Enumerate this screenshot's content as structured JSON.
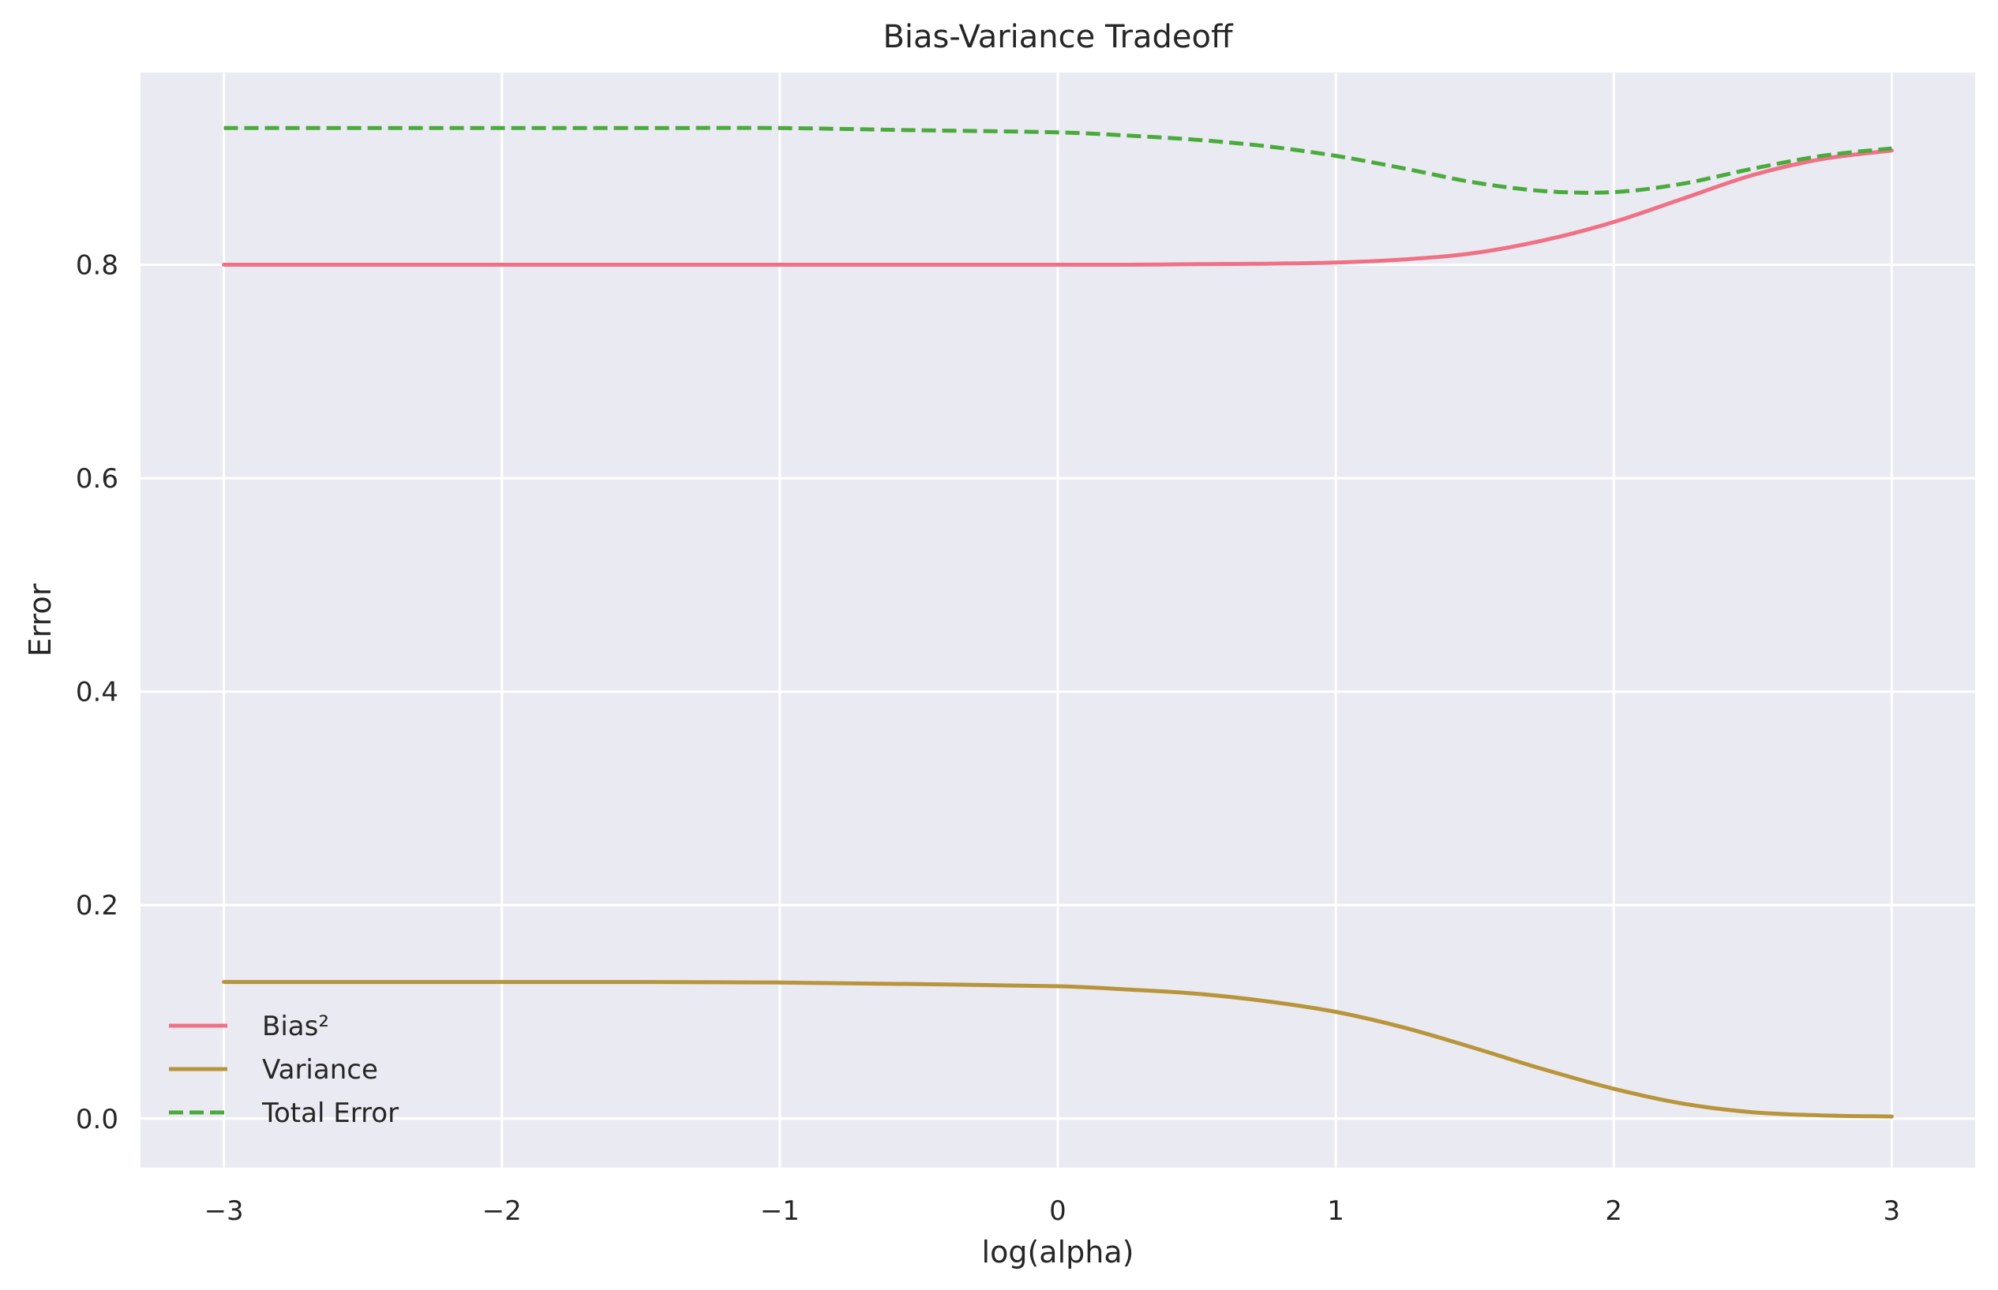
{
  "chart_data": {
    "type": "line",
    "title": "Bias-Variance Tradeoff",
    "xlabel": "log(alpha)",
    "ylabel": "Error",
    "xlim": [
      -3.3,
      3.3
    ],
    "ylim": [
      -0.046,
      0.98
    ],
    "xticks": [
      -3,
      -2,
      -1,
      0,
      1,
      2,
      3
    ],
    "xtick_labels": [
      "−3",
      "−2",
      "−1",
      "0",
      "1",
      "2",
      "3"
    ],
    "yticks": [
      0.0,
      0.2,
      0.4,
      0.6,
      0.8
    ],
    "ytick_labels": [
      "0.0",
      "0.2",
      "0.4",
      "0.6",
      "0.8"
    ],
    "grid": true,
    "legend_position": "lower-left",
    "background": "#eaeaf2",
    "x": [
      -3,
      -2.5,
      -2,
      -1.5,
      -1,
      -0.5,
      0,
      0.25,
      0.5,
      0.75,
      1,
      1.25,
      1.5,
      1.75,
      2,
      2.25,
      2.5,
      2.75,
      3
    ],
    "series": [
      {
        "name": "Bias²",
        "color": "#f07186",
        "style": "solid",
        "values": [
          0.8,
          0.8,
          0.8,
          0.8,
          0.8,
          0.8,
          0.8,
          0.8,
          0.8005,
          0.801,
          0.802,
          0.805,
          0.811,
          0.823,
          0.84,
          0.862,
          0.884,
          0.899,
          0.907
        ]
      },
      {
        "name": "Variance",
        "color": "#b8943a",
        "style": "solid",
        "values": [
          0.128,
          0.128,
          0.128,
          0.128,
          0.1275,
          0.126,
          0.124,
          0.121,
          0.117,
          0.11,
          0.1,
          0.085,
          0.066,
          0.046,
          0.028,
          0.014,
          0.006,
          0.003,
          0.002
        ]
      },
      {
        "name": "Total Error",
        "color": "#4aaa3c",
        "style": "dashed",
        "values": [
          0.928,
          0.928,
          0.928,
          0.928,
          0.928,
          0.926,
          0.924,
          0.921,
          0.917,
          0.911,
          0.902,
          0.89,
          0.877,
          0.869,
          0.868,
          0.876,
          0.89,
          0.902,
          0.909
        ]
      }
    ]
  }
}
